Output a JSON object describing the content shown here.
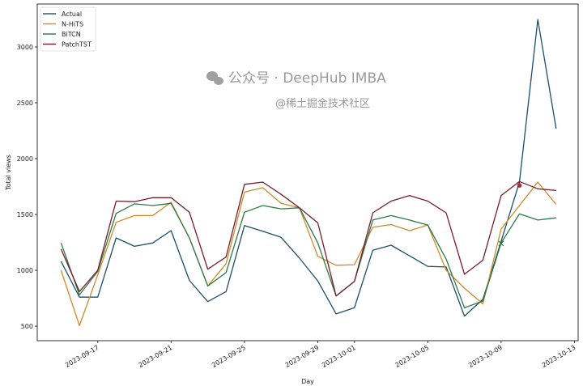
{
  "chart_data": {
    "type": "line",
    "title": "",
    "xlabel": "Day",
    "ylabel": "Total views",
    "x_start": "2023-09-15",
    "x": [
      "2023-09-15",
      "2023-09-16",
      "2023-09-17",
      "2023-09-18",
      "2023-09-19",
      "2023-09-20",
      "2023-09-21",
      "2023-09-22",
      "2023-09-23",
      "2023-09-24",
      "2023-09-25",
      "2023-09-26",
      "2023-09-27",
      "2023-09-28",
      "2023-09-29",
      "2023-09-30",
      "2023-10-01",
      "2023-10-02",
      "2023-10-03",
      "2023-10-04",
      "2023-10-05",
      "2023-10-06",
      "2023-10-07",
      "2023-10-08",
      "2023-10-09",
      "2023-10-10",
      "2023-10-11",
      "2023-10-12"
    ],
    "xticks": [
      "2023-09-17",
      "2023-09-21",
      "2023-09-25",
      "2023-09-29",
      "2023-10-01",
      "2023-10-05",
      "2023-10-09",
      "2023-10-13"
    ],
    "xlim_days": [
      -1.3,
      28.2
    ],
    "yticks": [
      500,
      1000,
      1500,
      2000,
      2500,
      3000
    ],
    "ylim": [
      370,
      3384
    ],
    "grid": false,
    "legend_position": "top-left",
    "series": [
      {
        "name": "Actual",
        "color": "#1d4f6b",
        "values": [
          1080,
          760,
          760,
          1290,
          1215,
          1245,
          1355,
          910,
          720,
          810,
          1400,
          1350,
          1295,
          1110,
          905,
          610,
          665,
          1180,
          1225,
          1130,
          1035,
          1030,
          590,
          740,
          1260,
          1790,
          3245,
          2270
        ]
      },
      {
        "name": "N-HiTS",
        "color": "#d08a2c",
        "values": [
          1000,
          505,
          960,
          1430,
          1490,
          1490,
          1610,
          1290,
          860,
          1060,
          1700,
          1740,
          1600,
          1560,
          1125,
          1045,
          1050,
          1385,
          1410,
          1355,
          1405,
          1000,
          840,
          700,
          1370,
          1580,
          1790,
          1590
        ]
      },
      {
        "name": "BiTCN",
        "color": "#2b7a45",
        "values": [
          1245,
          780,
          990,
          1510,
          1595,
          1580,
          1600,
          1290,
          860,
          980,
          1520,
          1580,
          1550,
          1560,
          1245,
          770,
          900,
          1450,
          1490,
          1450,
          1405,
          1100,
          665,
          725,
          1245,
          1505,
          1450,
          1470
        ]
      },
      {
        "name": "PatchTST",
        "color": "#7a1c28",
        "values": [
          1190,
          810,
          1000,
          1620,
          1615,
          1650,
          1650,
          1520,
          1010,
          1120,
          1770,
          1790,
          1680,
          1560,
          1425,
          770,
          900,
          1515,
          1620,
          1670,
          1620,
          1515,
          965,
          1090,
          1670,
          1795,
          1730,
          1715
        ]
      }
    ],
    "markers": [
      {
        "series": "BiTCN",
        "x": "2023-10-09",
        "y": 1240,
        "symbol": "x",
        "color": "#2b7a45"
      },
      {
        "series": "PatchTST",
        "x": "2023-10-10",
        "y": 1760,
        "symbol": "dot",
        "color": "#b0283e"
      }
    ]
  },
  "watermark": {
    "line1": "公众号 · DeepHub IMBA",
    "line2": "@稀土掘金技术社区"
  }
}
